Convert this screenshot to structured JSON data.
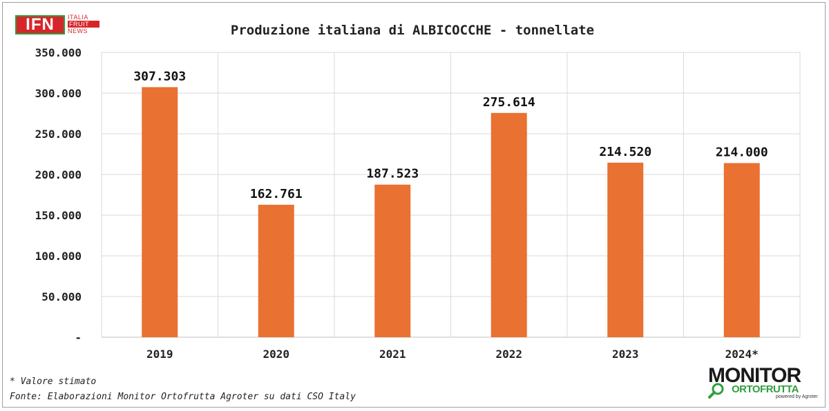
{
  "logo_ifn": {
    "mark": "IFN",
    "words": [
      "ITALIA",
      "FRUIT",
      "NEWS"
    ]
  },
  "logo_monitor": {
    "word": "MONITOR",
    "sub": "ORTOFRUTTA",
    "tiny": "powered by Agroter",
    "icon": "magnifier-icon"
  },
  "footnote": "* Valore stimato",
  "source": "Fonte: Elaborazioni Monitor Ortofrutta Agroter su dati CSO Italy",
  "colors": {
    "bar": "#E97132",
    "grid": "#D9D9D9",
    "axis": "#BFBFBF",
    "frame": "#9E9E9E"
  },
  "chart_data": {
    "type": "bar",
    "title": "Produzione italiana di ALBICOCCHE - tonnellate",
    "categories": [
      "2019",
      "2020",
      "2021",
      "2022",
      "2023",
      "2024*"
    ],
    "values": [
      307303,
      162761,
      187523,
      275614,
      214520,
      214000
    ],
    "data_labels": [
      "307.303",
      "162.761",
      "187.523",
      "275.614",
      "214.520",
      "214.000"
    ],
    "ylim": [
      0,
      350000
    ],
    "yticks": [
      0,
      50000,
      100000,
      150000,
      200000,
      250000,
      300000,
      350000
    ],
    "ytick_labels": [
      "-",
      "50.000",
      "100.000",
      "150.000",
      "200.000",
      "250.000",
      "300.000",
      "350.000"
    ],
    "xlabel": "",
    "ylabel": "",
    "grid": true,
    "legend": "none"
  }
}
